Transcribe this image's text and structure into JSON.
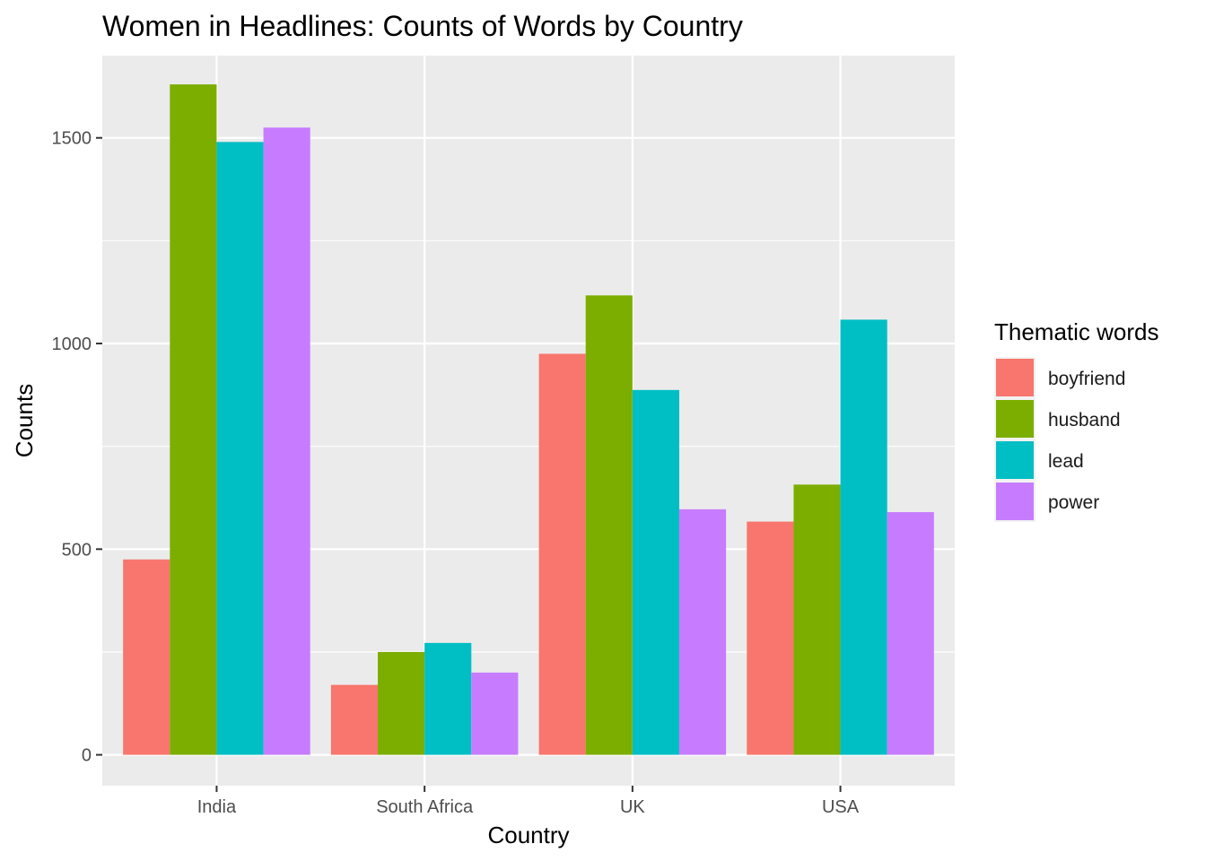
{
  "chart_data": {
    "type": "bar",
    "title": "Women in Headlines: Counts of Words by Country",
    "xlabel": "Country",
    "ylabel": "Counts",
    "categories": [
      "India",
      "South Africa",
      "UK",
      "USA"
    ],
    "series": [
      {
        "name": "boyfriend",
        "color": "#F8766D",
        "values": [
          475,
          170,
          975,
          567
        ]
      },
      {
        "name": "husband",
        "color": "#7CAE00",
        "values": [
          1630,
          250,
          1117,
          657
        ]
      },
      {
        "name": "lead",
        "color": "#00BFC4",
        "values": [
          1490,
          272,
          887,
          1058
        ]
      },
      {
        "name": "power",
        "color": "#C77CFF",
        "values": [
          1525,
          200,
          597,
          590
        ]
      }
    ],
    "ylim": [
      -75,
      1700
    ],
    "yticks": [
      0,
      500,
      1000,
      1500
    ],
    "grid": true,
    "legend": {
      "title": "Thematic words",
      "position": "right"
    },
    "colors": {
      "panel": "#EBEBEB",
      "grid": "#FFFFFF"
    }
  }
}
